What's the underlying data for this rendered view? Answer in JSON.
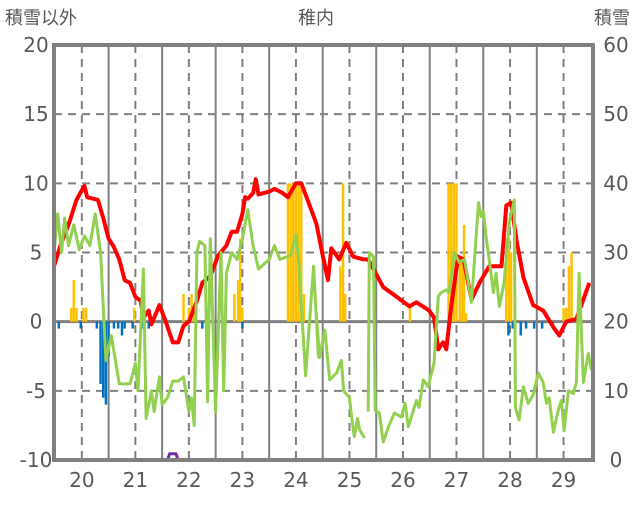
{
  "chart_data": {
    "type": "line",
    "title": "稚内",
    "ylabel_left": "積雪以外",
    "ylabel_right": "積雪",
    "xlim": [
      19.48,
      29.55
    ],
    "ylim_left": [
      -10,
      20
    ],
    "ylim_right": [
      0,
      60
    ],
    "x_ticks": [
      20,
      21,
      22,
      23,
      24,
      25,
      26,
      27,
      28,
      29
    ],
    "y_ticks_left": [
      20,
      15,
      10,
      5,
      0,
      -5,
      -10
    ],
    "y_ticks_right": [
      60,
      50,
      40,
      30,
      20,
      10,
      0
    ],
    "grid": true,
    "colors": {
      "temp": "#ff0000",
      "other": "#92d050",
      "pos_bar": "#ffc000",
      "neg_bar": "#0070c0",
      "snow": "#7030a0",
      "frame": "#808080"
    },
    "series": [
      {
        "name": "red",
        "axis": "left",
        "color": "#ff0000",
        "points": [
          [
            19.48,
            4
          ],
          [
            19.6,
            5.5
          ],
          [
            19.75,
            7
          ],
          [
            19.9,
            8.8
          ],
          [
            20.0,
            9.5
          ],
          [
            20.05,
            9.8
          ],
          [
            20.1,
            9
          ],
          [
            20.3,
            8.8
          ],
          [
            20.4,
            7.5
          ],
          [
            20.5,
            6
          ],
          [
            20.6,
            5.4
          ],
          [
            20.7,
            4.5
          ],
          [
            20.8,
            3
          ],
          [
            20.9,
            2.8
          ],
          [
            21.0,
            1.8
          ],
          [
            21.1,
            1.5
          ],
          [
            21.15,
            0.3
          ],
          [
            21.25,
            0.8
          ],
          [
            21.3,
            -0.2
          ],
          [
            21.45,
            1.2
          ],
          [
            21.55,
            0.2
          ],
          [
            21.7,
            -1.5
          ],
          [
            21.8,
            -1.5
          ],
          [
            21.9,
            -0.3
          ],
          [
            22.0,
            0
          ],
          [
            22.15,
            1.5
          ],
          [
            22.25,
            2.8
          ],
          [
            22.4,
            3.3
          ],
          [
            22.55,
            4.8
          ],
          [
            22.7,
            5.5
          ],
          [
            22.8,
            6.5
          ],
          [
            22.9,
            6.5
          ],
          [
            23.0,
            7.8
          ],
          [
            23.05,
            9
          ],
          [
            23.1,
            8.9
          ],
          [
            23.2,
            9.3
          ],
          [
            23.25,
            10.3
          ],
          [
            23.3,
            9.2
          ],
          [
            23.5,
            9.4
          ],
          [
            23.6,
            9.6
          ],
          [
            23.75,
            9.3
          ],
          [
            23.85,
            9
          ],
          [
            24.0,
            10
          ],
          [
            24.1,
            10
          ],
          [
            24.2,
            9
          ],
          [
            24.38,
            7.1
          ],
          [
            24.5,
            4.8
          ],
          [
            24.6,
            3
          ],
          [
            24.66,
            5.3
          ],
          [
            24.81,
            4.5
          ],
          [
            24.94,
            5.7
          ],
          [
            25.07,
            4.7
          ],
          [
            25.26,
            4.5
          ],
          [
            25.35,
            4.5
          ],
          [
            25.63,
            2.5
          ],
          [
            25.88,
            1.8
          ],
          [
            26.12,
            1.1
          ],
          [
            26.25,
            1.4
          ],
          [
            26.49,
            0.8
          ],
          [
            26.58,
            0.3
          ],
          [
            26.66,
            -2
          ],
          [
            26.75,
            -1.5
          ],
          [
            26.81,
            -2
          ],
          [
            26.9,
            1.1
          ],
          [
            27.03,
            4.7
          ],
          [
            27.13,
            4.5
          ],
          [
            27.28,
            1.6
          ],
          [
            27.43,
            2.8
          ],
          [
            27.61,
            4
          ],
          [
            27.84,
            4
          ],
          [
            27.93,
            8.4
          ],
          [
            28.02,
            8.6
          ],
          [
            28.12,
            5.9
          ],
          [
            28.25,
            3.2
          ],
          [
            28.43,
            1.2
          ],
          [
            28.62,
            0.8
          ],
          [
            28.81,
            -0.4
          ],
          [
            28.92,
            -1
          ],
          [
            29.05,
            0
          ],
          [
            29.24,
            0.2
          ],
          [
            29.48,
            2.8
          ]
        ]
      },
      {
        "name": "green",
        "axis": "left",
        "color": "#92d050",
        "points": [
          [
            19.48,
            5
          ],
          [
            19.55,
            7.8
          ],
          [
            19.62,
            5
          ],
          [
            19.68,
            7.5
          ],
          [
            19.75,
            5.5
          ],
          [
            19.85,
            7
          ],
          [
            19.95,
            5.2
          ],
          [
            20.05,
            6.2
          ],
          [
            20.15,
            5.5
          ],
          [
            20.25,
            7.8
          ],
          [
            20.35,
            5
          ],
          [
            20.45,
            -2.8
          ],
          [
            20.55,
            -1
          ],
          [
            20.7,
            -4.5
          ],
          [
            20.9,
            -4.5
          ],
          [
            21.0,
            -3
          ],
          [
            21.05,
            -5
          ],
          [
            21.15,
            3.8
          ],
          [
            21.2,
            -7
          ],
          [
            21.3,
            -5
          ],
          [
            21.35,
            -6.5
          ],
          [
            21.45,
            -4
          ],
          [
            21.5,
            -6
          ],
          [
            21.6,
            -5.5
          ],
          [
            21.7,
            -4.3
          ],
          [
            21.8,
            -4.3
          ],
          [
            21.9,
            -4
          ],
          [
            22.0,
            -6.5
          ],
          [
            22.05,
            -5.5
          ],
          [
            22.1,
            -7.5
          ],
          [
            22.15,
            5
          ],
          [
            22.2,
            5.8
          ],
          [
            22.3,
            5.5
          ],
          [
            22.35,
            -5.8
          ],
          [
            22.4,
            6
          ],
          [
            22.5,
            -6.5
          ],
          [
            22.6,
            5
          ],
          [
            22.65,
            -5
          ],
          [
            22.7,
            3.5
          ],
          [
            22.8,
            5
          ],
          [
            22.9,
            4.5
          ],
          [
            23.0,
            6
          ],
          [
            23.1,
            8.1
          ],
          [
            23.2,
            5.5
          ],
          [
            23.3,
            3.8
          ],
          [
            23.5,
            4.5
          ],
          [
            23.6,
            5.5
          ],
          [
            23.7,
            4.5
          ],
          [
            23.9,
            4.8
          ],
          [
            24.0,
            6.3
          ],
          [
            24.05,
            4.5
          ],
          [
            24.18,
            -3.9
          ],
          [
            24.33,
            4
          ],
          [
            24.42,
            -2.5
          ],
          [
            24.38,
            0.6
          ],
          [
            24.44,
            -2.6
          ],
          [
            24.54,
            -0.6
          ],
          [
            24.63,
            -4.2
          ],
          [
            24.76,
            -3.7
          ],
          [
            24.85,
            -2.8
          ],
          [
            24.89,
            -5
          ],
          [
            25.0,
            -5.5
          ],
          [
            25.04,
            -6.9
          ],
          [
            25.09,
            -8.3
          ],
          [
            25.15,
            -7
          ],
          [
            25.19,
            -7.8
          ],
          [
            25.28,
            -8.4
          ],
          [
            null,
            null
          ],
          [
            25.35,
            -6.5
          ],
          [
            25.37,
            5
          ],
          [
            25.45,
            4.7
          ],
          [
            25.48,
            -6.4
          ],
          [
            25.56,
            -6.6
          ],
          [
            25.63,
            -8.7
          ],
          [
            25.73,
            -7.6
          ],
          [
            25.84,
            -6.6
          ],
          [
            25.97,
            -6.9
          ],
          [
            26.04,
            -5.9
          ],
          [
            26.1,
            -7.6
          ],
          [
            26.25,
            -5.7
          ],
          [
            26.3,
            -6.2
          ],
          [
            26.38,
            -4.2
          ],
          [
            26.47,
            -4.7
          ],
          [
            26.58,
            -3
          ],
          [
            26.66,
            1.8
          ],
          [
            26.71,
            2.1
          ],
          [
            26.81,
            2.3
          ],
          [
            26.86,
            2.1
          ],
          [
            26.96,
            5
          ],
          [
            27.05,
            4.3
          ],
          [
            27.15,
            4.5
          ],
          [
            27.28,
            1.4
          ],
          [
            27.41,
            8.6
          ],
          [
            27.46,
            7.6
          ],
          [
            27.5,
            8
          ],
          [
            27.56,
            5.9
          ],
          [
            27.61,
            4.5
          ],
          [
            27.69,
            2.1
          ],
          [
            27.74,
            3.5
          ],
          [
            27.8,
            1.1
          ],
          [
            27.89,
            2.8
          ],
          [
            27.99,
            7.3
          ],
          [
            28.08,
            8.8
          ],
          [
            28.1,
            -6.2
          ],
          [
            28.17,
            -7.1
          ],
          [
            28.25,
            -4.7
          ],
          [
            28.34,
            -5.9
          ],
          [
            28.43,
            -5.3
          ],
          [
            28.53,
            -3.7
          ],
          [
            28.62,
            -4.4
          ],
          [
            28.68,
            -5.9
          ],
          [
            28.73,
            -5.5
          ],
          [
            28.81,
            -8
          ],
          [
            28.9,
            -6.4
          ],
          [
            28.96,
            -5.7
          ],
          [
            29.01,
            -7.9
          ],
          [
            29.09,
            -5
          ],
          [
            29.18,
            -5.2
          ],
          [
            29.24,
            -4.4
          ],
          [
            29.29,
            3.5
          ],
          [
            29.37,
            -4.4
          ],
          [
            29.46,
            -2.3
          ],
          [
            29.52,
            -3.5
          ]
        ]
      },
      {
        "name": "purple",
        "axis": "right",
        "color": "#7030a0",
        "points": [
          [
            19.48,
            0
          ],
          [
            21.6,
            0
          ],
          [
            21.64,
            0.9
          ],
          [
            21.76,
            0.9
          ],
          [
            21.8,
            0
          ],
          [
            29.55,
            0
          ]
        ]
      }
    ],
    "bars_positive": {
      "axis": "left",
      "color": "#ffc000",
      "bars": [
        [
          19.8,
          1
        ],
        [
          19.85,
          3
        ],
        [
          19.9,
          1
        ],
        [
          20.03,
          1
        ],
        [
          20.08,
          1
        ],
        [
          20.98,
          1
        ],
        [
          21.9,
          2
        ],
        [
          22.0,
          1
        ],
        [
          22.05,
          2
        ],
        [
          22.1,
          1
        ],
        [
          22.85,
          2
        ],
        [
          22.92,
          3
        ],
        [
          22.96,
          6
        ],
        [
          23.0,
          1
        ],
        [
          23.85,
          10
        ],
        [
          23.9,
          10
        ],
        [
          23.95,
          10
        ],
        [
          24.0,
          10
        ],
        [
          24.05,
          10
        ],
        [
          24.1,
          10
        ],
        [
          24.15,
          2
        ],
        [
          24.83,
          4
        ],
        [
          24.88,
          10
        ],
        [
          24.92,
          2
        ],
        [
          26.13,
          1
        ],
        [
          26.85,
          10
        ],
        [
          26.9,
          10
        ],
        [
          26.95,
          10
        ],
        [
          27.0,
          10
        ],
        [
          27.06,
          4.7
        ],
        [
          27.11,
          4.7
        ],
        [
          27.14,
          7
        ],
        [
          27.18,
          0.6
        ],
        [
          27.93,
          6
        ],
        [
          27.98,
          6
        ],
        [
          28.02,
          5
        ],
        [
          29.0,
          1
        ],
        [
          29.05,
          1
        ],
        [
          29.1,
          4
        ],
        [
          29.15,
          5
        ]
      ]
    },
    "bars_negative": {
      "axis": "left",
      "color": "#0070c0",
      "bars": [
        [
          19.57,
          -0.5
        ],
        [
          19.98,
          -0.5
        ],
        [
          20.28,
          -0.5
        ],
        [
          20.35,
          -4.5
        ],
        [
          20.4,
          -5.5
        ],
        [
          20.45,
          -6
        ],
        [
          20.5,
          -2.5
        ],
        [
          20.6,
          -0.5
        ],
        [
          20.68,
          -0.5
        ],
        [
          20.75,
          -1
        ],
        [
          20.8,
          -0.5
        ],
        [
          20.95,
          -0.5
        ],
        [
          21.15,
          -0.5
        ],
        [
          21.25,
          -0.5
        ],
        [
          22.25,
          -0.5
        ],
        [
          23.0,
          -0.5
        ],
        [
          27.97,
          -1
        ],
        [
          28.05,
          -0.5
        ],
        [
          28.2,
          -1
        ],
        [
          28.3,
          -0.5
        ],
        [
          28.45,
          -0.5
        ],
        [
          28.6,
          -0.5
        ],
        [
          28.8,
          -0.5
        ]
      ]
    }
  }
}
